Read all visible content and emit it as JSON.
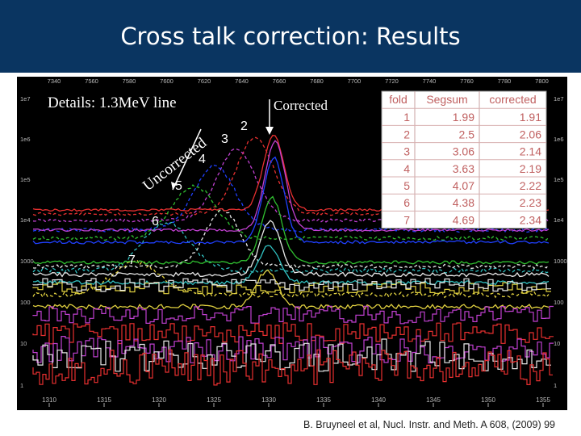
{
  "slide": {
    "title": "Cross talk correction: Results",
    "citation": "B. Bruyneel et al, Nucl. Instr. and Meth. A 608, (2009) 99"
  },
  "chart_data": {
    "type": "line",
    "title": "Details: 1.3MeV line",
    "xlabel": "",
    "ylabel": "",
    "y_scale": "log",
    "ylim": [
      1,
      10000000
    ],
    "x_ticks": [
      "1310",
      "1315",
      "1320",
      "1325",
      "1330",
      "1335",
      "1340",
      "1345",
      "1350",
      "1355"
    ],
    "y_ticks": [
      "1",
      "10",
      "100",
      "1000",
      "1e4",
      "1e5",
      "1e6",
      "1e7"
    ],
    "top_ticks": [
      "7340",
      "7560",
      "7580",
      "7600",
      "7620",
      "7640",
      "7660",
      "7680",
      "7700",
      "7720",
      "7740",
      "7760",
      "7780",
      "7800"
    ],
    "annotations": {
      "uncorrected": "Uncorrected",
      "corrected": "Corrected",
      "fold_labels": [
        "2",
        "3",
        "4",
        "5",
        "6",
        "7"
      ]
    },
    "colors": {
      "fold1": "#e8e8e8",
      "fold2": "#e83030",
      "fold3": "#c040d0",
      "fold4": "#2040ff",
      "fold5": "#30c030",
      "fold6": "#30c0c0",
      "fold7": "#e0d040"
    },
    "table": {
      "headers": [
        "fold",
        "Segsum",
        "corrected"
      ],
      "rows": [
        [
          "1",
          "1.99",
          "1.91"
        ],
        [
          "2",
          "2.5",
          "2.06"
        ],
        [
          "3",
          "3.06",
          "2.14"
        ],
        [
          "4",
          "3.63",
          "2.19"
        ],
        [
          "5",
          "4.07",
          "2.22"
        ],
        [
          "6",
          "4.38",
          "2.23"
        ],
        [
          "7",
          "4.69",
          "2.34"
        ]
      ]
    }
  }
}
